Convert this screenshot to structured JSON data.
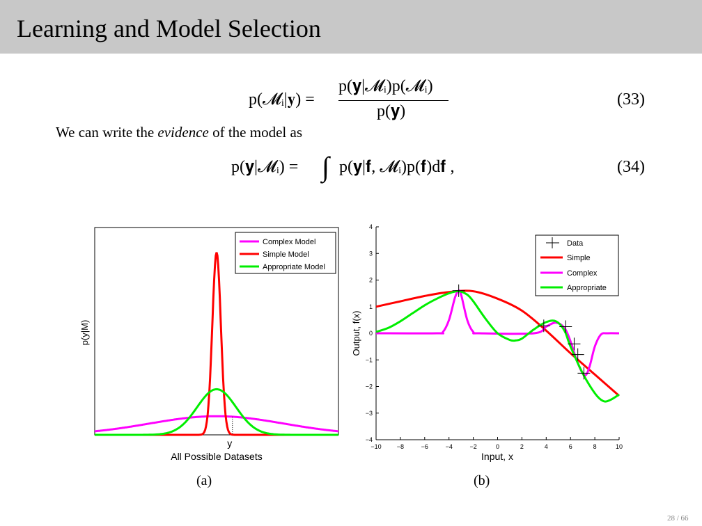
{
  "title": "Learning and Model Selection",
  "eq33": {
    "lhs": "p(𝓜ᵢ|𝐲) =",
    "numerator": "p(𝐲|𝓜ᵢ)p(𝓜ᵢ)",
    "denominator": "p(𝐲)",
    "number": "(33)"
  },
  "text_line": {
    "before": "We can write the ",
    "emph": "evidence",
    "after": " of the model as"
  },
  "eq34": {
    "lhs": "p(𝐲|𝓜ᵢ) =",
    "integral": "∫",
    "rhs": "p(𝐲|𝐟, 𝓜ᵢ)p(𝐟)d𝐟 ,",
    "number": "(34)"
  },
  "captions": {
    "a": "(a)",
    "b": "(b)"
  },
  "page": "28 / 66",
  "colors": {
    "complex": "#ff00ff",
    "simple": "#ff0000",
    "appropriate": "#00ee00",
    "data": "#000000"
  },
  "chart_data": [
    {
      "type": "line",
      "ylabel": "p(y|M)",
      "xlabel": "All Possible Datasets",
      "x_marker_label": "y",
      "legend": [
        "Complex Model",
        "Simple Model",
        "Appropriate Model"
      ],
      "legend_position": "top-right",
      "x_range": [
        -1,
        1
      ],
      "y_range": [
        0,
        1
      ],
      "series": [
        {
          "name": "Complex Model",
          "kind": "gaussian",
          "mean": 0,
          "sd": 0.55,
          "peak": 0.09
        },
        {
          "name": "Simple Model",
          "kind": "gaussian",
          "mean": 0,
          "sd": 0.035,
          "peak": 0.88
        },
        {
          "name": "Appropriate Model",
          "kind": "gaussian",
          "mean": 0,
          "sd": 0.16,
          "peak": 0.22
        }
      ],
      "y_marker_x": 0.13
    },
    {
      "type": "line",
      "xlabel": "Input, x",
      "ylabel": "Output, f(x)",
      "xlim": [
        -10,
        10
      ],
      "ylim": [
        -4,
        4
      ],
      "x_ticks": [
        -10,
        -8,
        -6,
        -4,
        -2,
        0,
        2,
        4,
        6,
        8,
        10
      ],
      "y_ticks": [
        -4,
        -3,
        -2,
        -1,
        0,
        1,
        2,
        3,
        4
      ],
      "legend": [
        "Data",
        "Simple",
        "Complex",
        "Appropriate"
      ],
      "legend_position": "top-right",
      "data_points": {
        "x": [
          -3.2,
          3.8,
          5.6,
          6.3,
          6.6,
          7.1
        ],
        "y": [
          1.6,
          0.28,
          0.25,
          -0.4,
          -0.8,
          -1.5
        ]
      },
      "series": [
        {
          "name": "Simple",
          "x": [
            -10,
            -8,
            -6,
            -4,
            -2,
            0,
            2,
            4,
            6,
            8,
            10
          ],
          "y": [
            1.0,
            1.2,
            1.4,
            1.55,
            1.58,
            1.3,
            0.85,
            0.1,
            -0.75,
            -1.55,
            -2.35
          ]
        },
        {
          "name": "Complex",
          "x": [
            -10,
            -5,
            -4.5,
            -4,
            -3.5,
            -3.2,
            -3,
            -2.5,
            -2,
            -1.5,
            3,
            4,
            4.8,
            5.5,
            6,
            6.5,
            7,
            7.3,
            7.6,
            8,
            8.5,
            9,
            10
          ],
          "y": [
            0,
            0,
            0.05,
            0.5,
            1.35,
            1.6,
            1.45,
            0.5,
            0.05,
            0,
            0,
            0.25,
            0.4,
            0.2,
            -0.3,
            -1.0,
            -1.5,
            -1.55,
            -1.2,
            -0.5,
            -0.05,
            0,
            0
          ]
        },
        {
          "name": "Appropriate",
          "x": [
            -10,
            -9,
            -8,
            -7,
            -6,
            -5,
            -4,
            -3.2,
            -2.5,
            -2,
            -1,
            0,
            1,
            1.5,
            2,
            3,
            4,
            4.8,
            5.5,
            6,
            7,
            8,
            8.7,
            9.3,
            10
          ],
          "y": [
            0.05,
            0.2,
            0.45,
            0.75,
            1.05,
            1.3,
            1.5,
            1.58,
            1.45,
            1.2,
            0.55,
            0.0,
            -0.25,
            -0.27,
            -0.2,
            0.15,
            0.42,
            0.45,
            0.1,
            -0.5,
            -1.5,
            -2.25,
            -2.55,
            -2.5,
            -2.3
          ]
        }
      ]
    }
  ]
}
